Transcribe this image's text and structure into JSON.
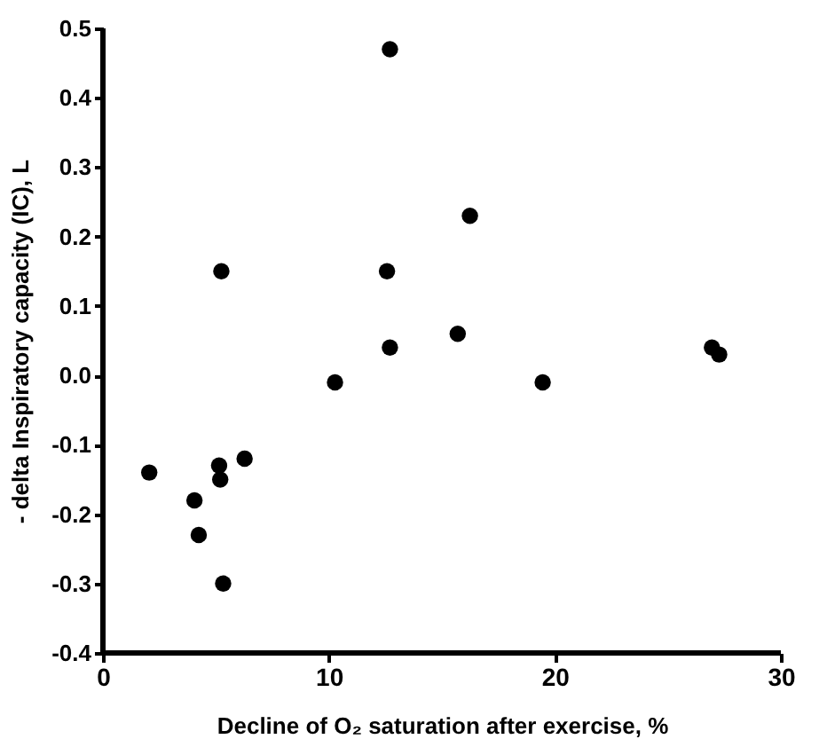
{
  "chart_data": {
    "type": "scatter",
    "xlabel": "Decline of O₂ saturation after exercise, %",
    "ylabel": "- delta Inspiratory capacity (IC), L",
    "x": [
      2.05,
      4.05,
      4.24,
      5.14,
      5.19,
      5.32,
      5.24,
      6.27,
      10.27,
      12.57,
      12.7,
      12.7,
      15.7,
      16.24,
      19.46,
      26.95,
      27.27
    ],
    "series": [
      {
        "color": "#000000",
        "values": [
          -0.14,
          -0.18,
          -0.23,
          -0.13,
          -0.15,
          -0.3,
          0.15,
          -0.12,
          -0.01,
          0.15,
          0.47,
          0.04,
          0.06,
          0.23,
          -0.01,
          0.04,
          0.03
        ]
      }
    ],
    "xlim": [
      0,
      30
    ],
    "xticks": [
      0,
      10,
      20,
      30
    ],
    "ylim": [
      -0.4,
      0.5
    ],
    "yticks": [
      -0.4,
      -0.3,
      -0.2,
      -0.1,
      {
        "value": 0,
        "label": "0.0"
      },
      0.1,
      0.2,
      0.3,
      0.4,
      0.5
    ],
    "marker": "circle",
    "grid": false
  }
}
